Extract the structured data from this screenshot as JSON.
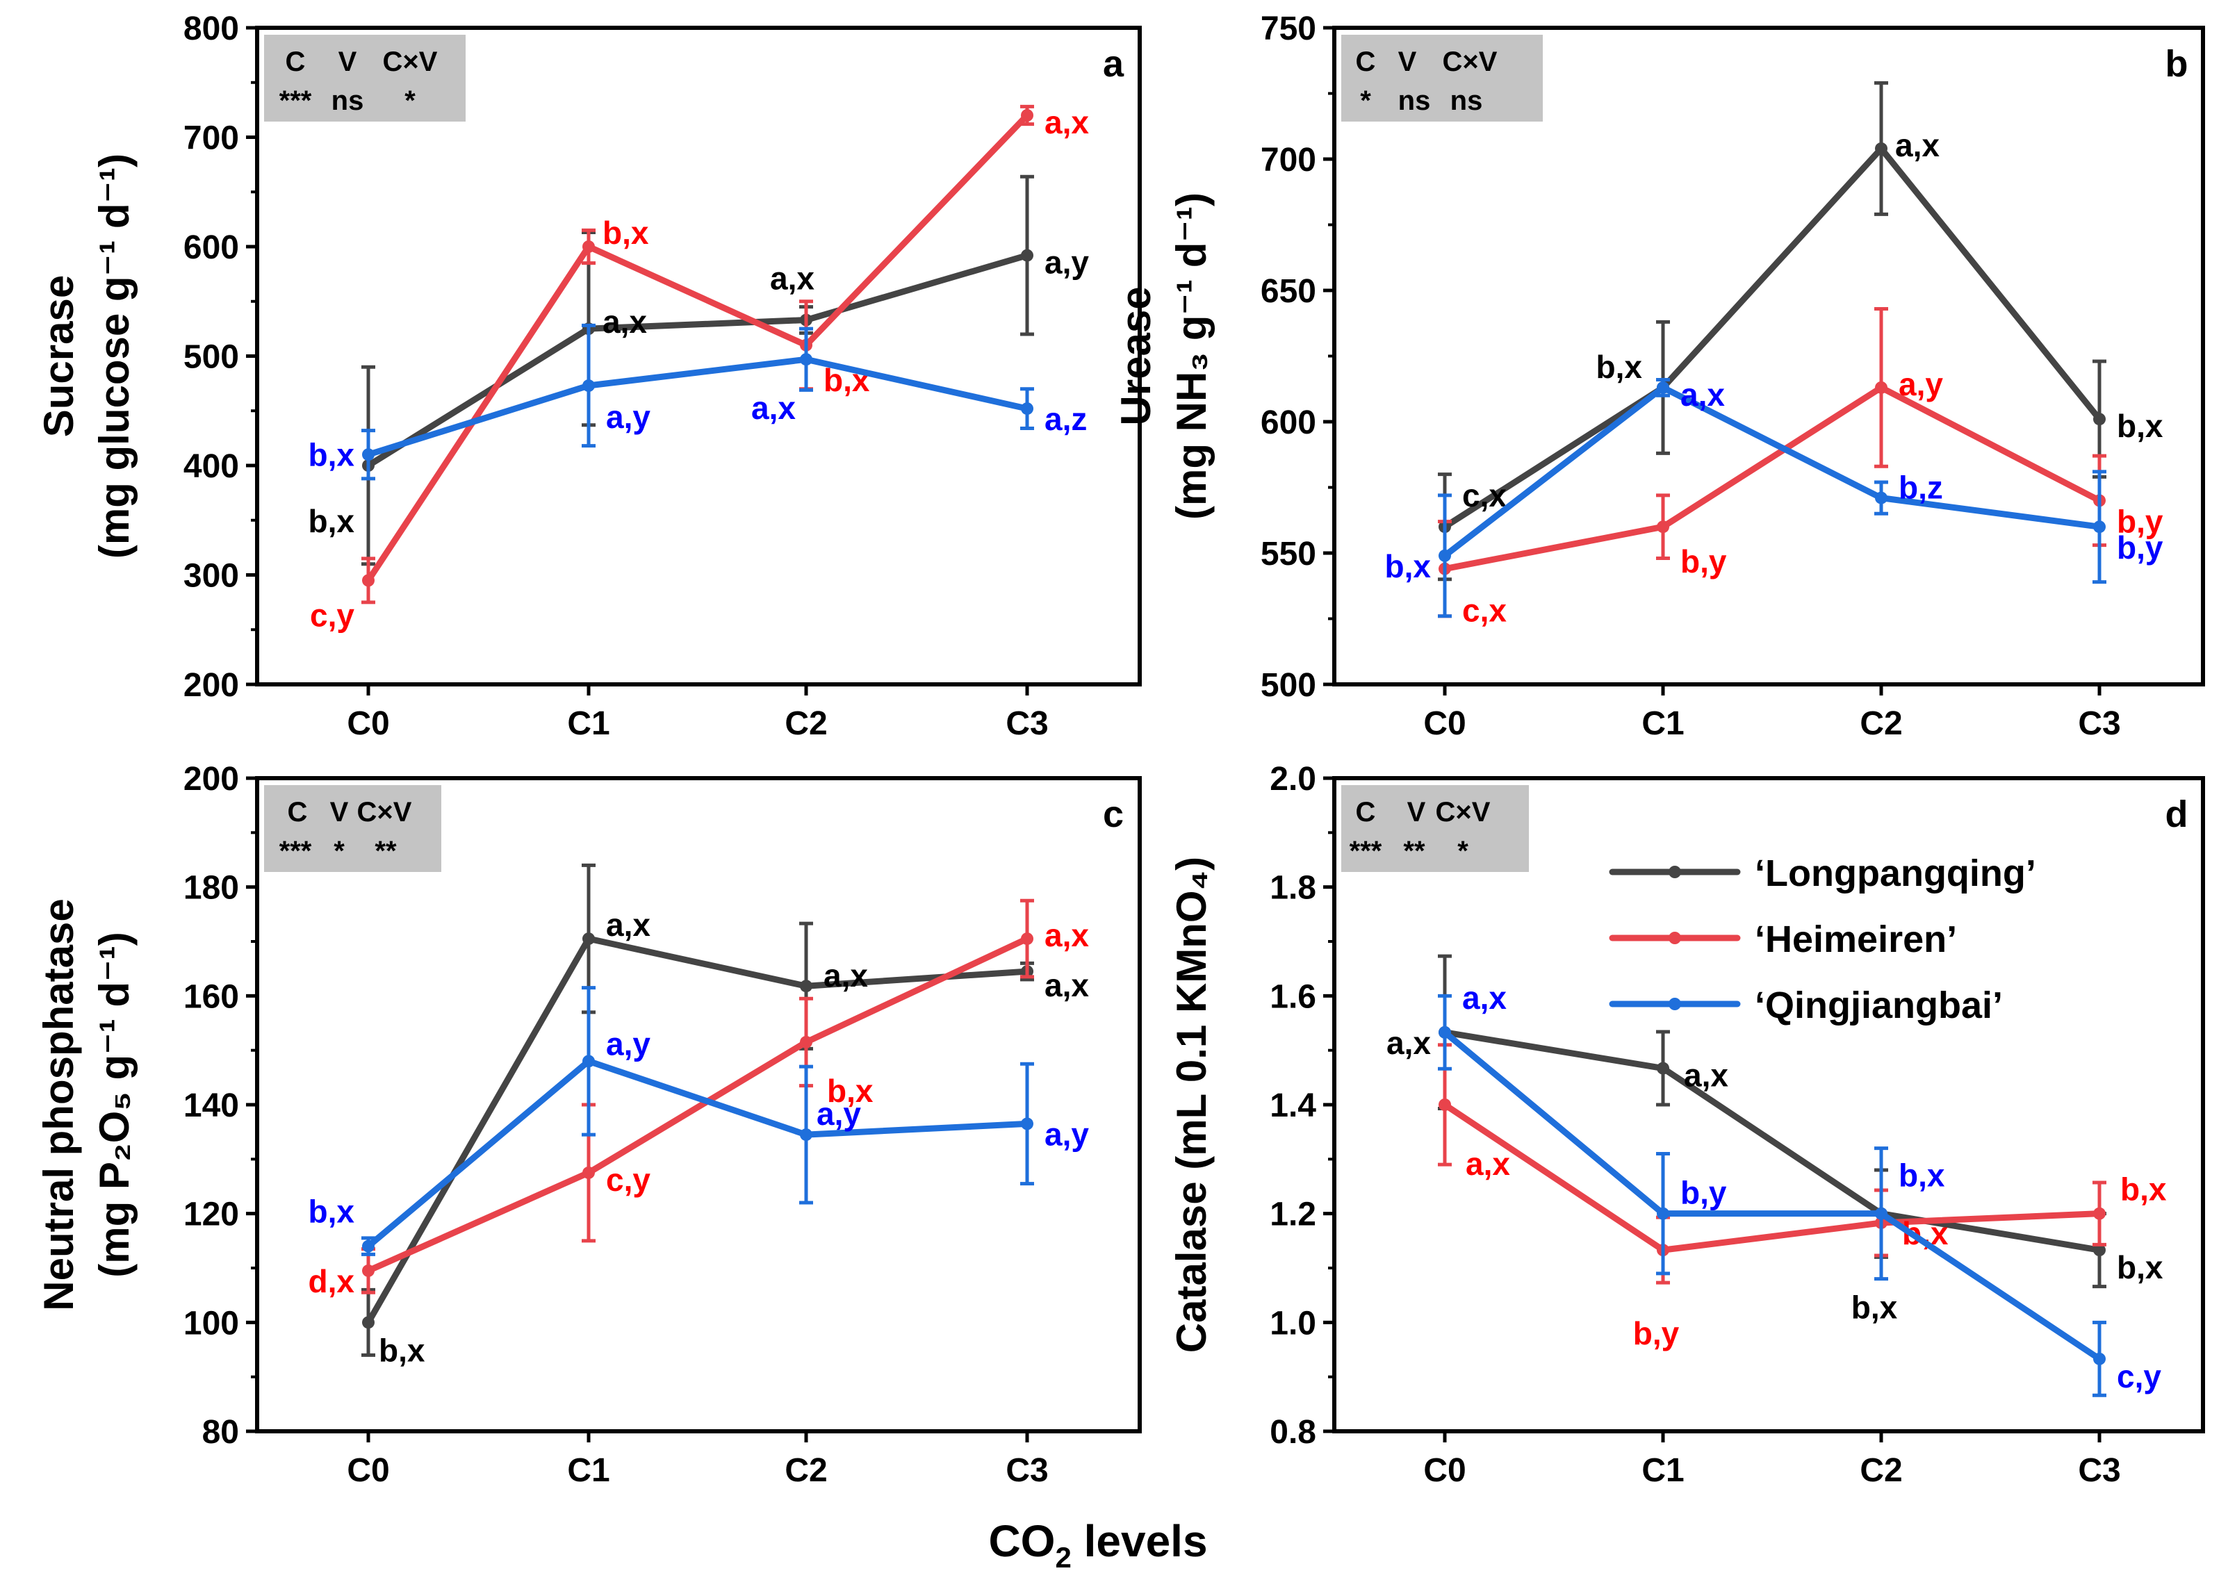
{
  "figure": {
    "x_title_main": "CO",
    "x_title_sub": "2",
    "x_title_rest": " levels",
    "legend": [
      "‘Longpangqing’",
      "‘Heimeiren’",
      "‘Qingjiangbai’"
    ]
  },
  "colors": {
    "Longpangqing": "#444444",
    "Heimeiren": "#e8434b",
    "Qingjiangbai": "#1f6fdb"
  },
  "label_colors": {
    "Longpangqing": "#000000",
    "Heimeiren": "#ff0000",
    "Qingjiangbai": "#0000ff"
  },
  "chart_data": [
    {
      "type": "line",
      "panel": "a",
      "ylabel_line1": "Sucrase",
      "ylabel_line2": "(mg glucose g⁻¹ d⁻¹)",
      "categories": [
        "C0",
        "C1",
        "C2",
        "C3"
      ],
      "ylim": [
        200,
        800
      ],
      "yticks": [
        200,
        300,
        400,
        500,
        600,
        700,
        800
      ],
      "significance": {
        "headers": [
          "C",
          "V",
          "C×V"
        ],
        "values": [
          "***",
          "ns",
          "*"
        ]
      },
      "series": [
        {
          "name": "‘Longpangqing’",
          "values": [
            400,
            525,
            533,
            592
          ],
          "errors": [
            90,
            88,
            12,
            72
          ],
          "labels": [
            "b,x",
            "a,x",
            "a,x",
            "a,y"
          ]
        },
        {
          "name": "‘Heimeiren’",
          "values": [
            295,
            600,
            510,
            720
          ],
          "errors": [
            20,
            15,
            40,
            8
          ],
          "labels": [
            "c,y",
            "b,x",
            "b,x",
            "a,x"
          ]
        },
        {
          "name": "‘Qingjiangbai’",
          "values": [
            410,
            473,
            497,
            452
          ],
          "errors": [
            22,
            55,
            28,
            18
          ],
          "labels": [
            "b,x",
            "a,y",
            "a,x",
            "a,z"
          ]
        }
      ]
    },
    {
      "type": "line",
      "panel": "b",
      "ylabel_line1": "Urease",
      "ylabel_line2": "(mg NH₃ g⁻¹ d⁻¹)",
      "categories": [
        "C0",
        "C1",
        "C2",
        "C3"
      ],
      "ylim": [
        500,
        750
      ],
      "yticks": [
        500,
        550,
        600,
        650,
        700,
        750
      ],
      "significance": {
        "headers": [
          "C",
          "V",
          "C×V"
        ],
        "values": [
          "*",
          "ns",
          "ns"
        ]
      },
      "series": [
        {
          "name": "‘Longpangqing’",
          "values": [
            560,
            613,
            704,
            601
          ],
          "errors": [
            20,
            25,
            25,
            22
          ],
          "labels": [
            "c,x",
            "b,x",
            "a,x",
            "b,x"
          ]
        },
        {
          "name": "‘Heimeiren’",
          "values": [
            544,
            560,
            613,
            570
          ],
          "errors": [
            18,
            12,
            30,
            17
          ],
          "labels": [
            "c,x",
            "b,y",
            "a,y",
            "b,y"
          ]
        },
        {
          "name": "‘Qingjiangbai’",
          "values": [
            549,
            613,
            571,
            560
          ],
          "errors": [
            23,
            3,
            6,
            21
          ],
          "labels": [
            "b,x",
            "a,x",
            "b,z",
            "b,y"
          ]
        }
      ]
    },
    {
      "type": "line",
      "panel": "c",
      "ylabel_line1": "Neutral phosphatase",
      "ylabel_line2": "(mg P₂O₅ g⁻¹ d⁻¹)",
      "categories": [
        "C0",
        "C1",
        "C2",
        "C3"
      ],
      "ylim": [
        80,
        200
      ],
      "yticks": [
        80,
        100,
        120,
        140,
        160,
        180,
        200
      ],
      "significance": {
        "headers": [
          "C",
          "V",
          "C×V"
        ],
        "values": [
          "***",
          "*",
          "**"
        ]
      },
      "series": [
        {
          "name": "‘Longpangqing’",
          "values": [
            100,
            170.5,
            161.8,
            164.5
          ],
          "errors": [
            6,
            13.5,
            11.5,
            1.5
          ],
          "labels": [
            "b,x",
            "a,x",
            "a,x",
            "a,x"
          ]
        },
        {
          "name": "‘Heimeiren’",
          "values": [
            109.5,
            127.5,
            151.5,
            170.5
          ],
          "errors": [
            4,
            12.5,
            8,
            7
          ],
          "labels": [
            "d,x",
            "c,y",
            "b,x",
            "a,x"
          ]
        },
        {
          "name": "‘Qingjiangbai’",
          "values": [
            114,
            148,
            134.5,
            136.5
          ],
          "errors": [
            1.5,
            13.5,
            12.5,
            11
          ],
          "labels": [
            "b,x",
            "a,y",
            "a,y",
            "a,y"
          ]
        }
      ]
    },
    {
      "type": "line",
      "panel": "d",
      "ylabel_line1": "Catalase (mL 0.1 KMnO₄)",
      "ylabel_line2": "",
      "categories": [
        "C0",
        "C1",
        "C2",
        "C3"
      ],
      "ylim": [
        0.8,
        2.0
      ],
      "yticks": [
        0.8,
        1.0,
        1.2,
        1.4,
        1.6,
        1.8,
        2.0
      ],
      "significance": {
        "headers": [
          "C",
          "V",
          "C×V"
        ],
        "values": [
          "***",
          "**",
          "*"
        ]
      },
      "series": [
        {
          "name": "‘Longpangqing’",
          "values": [
            1.533,
            1.467,
            1.2,
            1.133
          ],
          "errors": [
            0.14,
            0.067,
            0.08,
            0.067
          ],
          "labels": [
            "a,x",
            "a,x",
            "b,x",
            "b,x"
          ]
        },
        {
          "name": "‘Heimeiren’",
          "values": [
            1.4,
            1.133,
            1.183,
            1.2
          ],
          "errors": [
            0.11,
            0.06,
            0.06,
            0.057
          ],
          "labels": [
            "a,x",
            "b,y",
            "b,x",
            "b,x"
          ]
        },
        {
          "name": "‘Qingjiangbai’",
          "values": [
            1.533,
            1.2,
            1.2,
            0.933
          ],
          "errors": [
            0.067,
            0.11,
            0.12,
            0.067
          ],
          "labels": [
            "a,x",
            "b,y",
            "b,x",
            "c,y"
          ]
        }
      ]
    }
  ]
}
